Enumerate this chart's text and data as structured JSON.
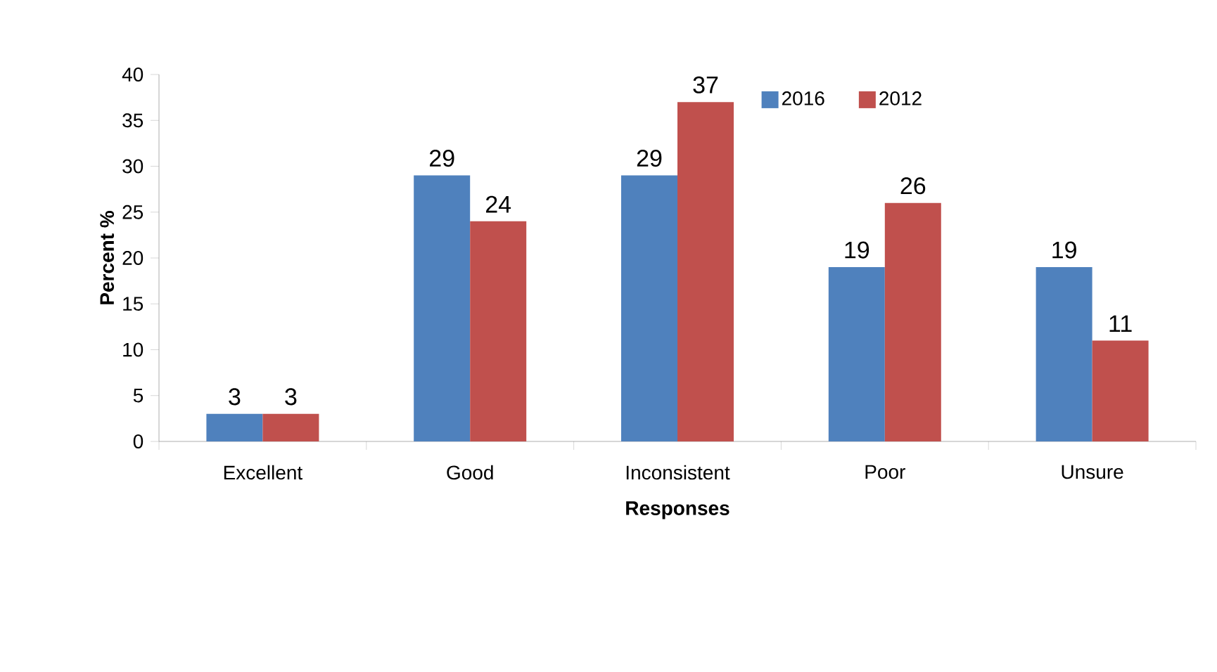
{
  "chart_data": {
    "type": "bar",
    "xlabel": "Responses",
    "ylabel": "Percent %",
    "categories": [
      "Excellent",
      "Good",
      "Inconsistent",
      "Poor",
      "Unsure"
    ],
    "series": [
      {
        "name": "2016",
        "color": "#4f81bd",
        "values": [
          3,
          29,
          29,
          19,
          19
        ]
      },
      {
        "name": "2012",
        "color": "#c0504d",
        "values": [
          3,
          24,
          37,
          26,
          11
        ]
      }
    ],
    "ylim": [
      0,
      40
    ],
    "yticks": [
      0,
      5,
      10,
      15,
      20,
      25,
      30,
      35,
      40
    ],
    "data_labels": true,
    "legend": "top right",
    "grid": false
  }
}
